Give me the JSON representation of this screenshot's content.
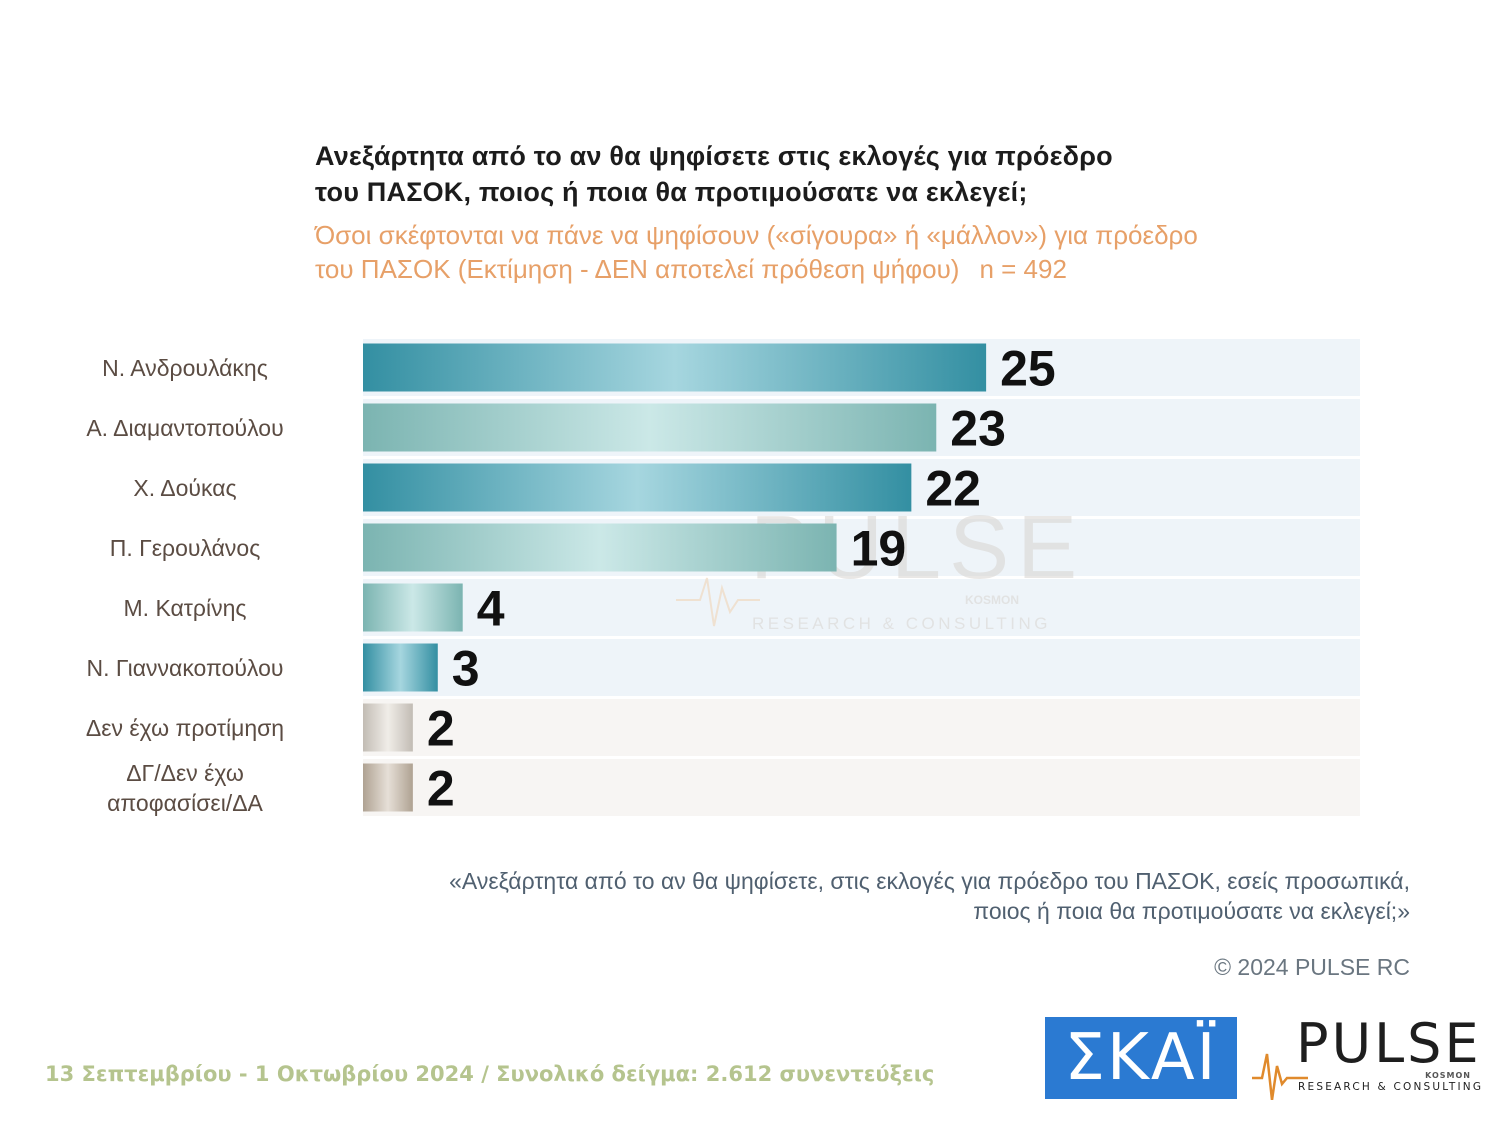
{
  "header": {
    "title_line1": "Ανεξάρτητα από το αν θα ψηφίσετε στις εκλογές για πρόεδρο",
    "title_line2": "του ΠΑΣΟΚ, ποιος ή ποια θα προτιμούσατε να εκλεγεί;",
    "subtitle_line1": "Όσοι σκέφτονται να πάνε να ψηφίσουν («σίγουρα» ή «μάλλον») για πρόεδρο",
    "subtitle_line2": "του ΠΑΣΟΚ   (Εκτίμηση - ΔΕΝ αποτελεί πρόθεση ψήφου)",
    "sample": "n = 492"
  },
  "chart_data": {
    "type": "bar",
    "orientation": "horizontal",
    "categories": [
      "Ν. Ανδρουλάκης",
      "Α. Διαμαντοπούλου",
      "Χ. Δούκας",
      "Π. Γερουλάνος",
      "Μ. Κατρίνης",
      "Ν. Γιαννακοπούλου",
      "Δεν έχω προτίμηση",
      "ΔΓ/Δεν έχω αποφασίσει/ΔΑ"
    ],
    "category_lines": [
      [
        "Ν. Ανδρουλάκης"
      ],
      [
        "Α. Διαμαντοπούλου"
      ],
      [
        "Χ. Δούκας"
      ],
      [
        "Π. Γερουλάνος"
      ],
      [
        "Μ. Κατρίνης"
      ],
      [
        "Ν. Γιαννακοπούλου"
      ],
      [
        "Δεν έχω προτίμηση"
      ],
      [
        "ΔΓ/Δεν έχω",
        "αποφασίσει/ΔΑ"
      ]
    ],
    "values": [
      25,
      23,
      22,
      19,
      4,
      3,
      2,
      2
    ],
    "data_labels": [
      "25",
      "23",
      "22",
      "19",
      "4",
      "3",
      "2",
      "2"
    ],
    "xlim": [
      0,
      40
    ],
    "grid": false,
    "legend": "none",
    "bar_colors": [
      "#3aa3b8",
      "#8cccc9",
      "#3aa3b8",
      "#8cccc9",
      "#8cccc9",
      "#3aa3b8",
      "#ddd6cc",
      "#c7b8a6"
    ]
  },
  "watermark": {
    "word": "PULSE",
    "sub": "KOSMON",
    "tagline": "RESEARCH & CONSULTING"
  },
  "footer": {
    "question_line1": "«Ανεξάρτητα από το αν θα ψηφίσετε, στις εκλογές για πρόεδρο του ΠΑΣΟΚ, εσείς προσωπικά,",
    "question_line2": "ποιος ή ποια θα προτιμούσατε να εκλεγεί;»",
    "copyright": "© 2024 PULSE RC",
    "fieldwork": "13 Σεπτεμβρίου - 1 Οκτωβρίου 2024  /  Συνολικό δείγμα:  2.612 συνεντεύξεις"
  },
  "logos": {
    "skai": "ΣΚΑΪ",
    "pulse_word": "PULSE",
    "pulse_tagline": "RESEARCH & CONSULTING",
    "pulse_sub": "KOSMON"
  }
}
